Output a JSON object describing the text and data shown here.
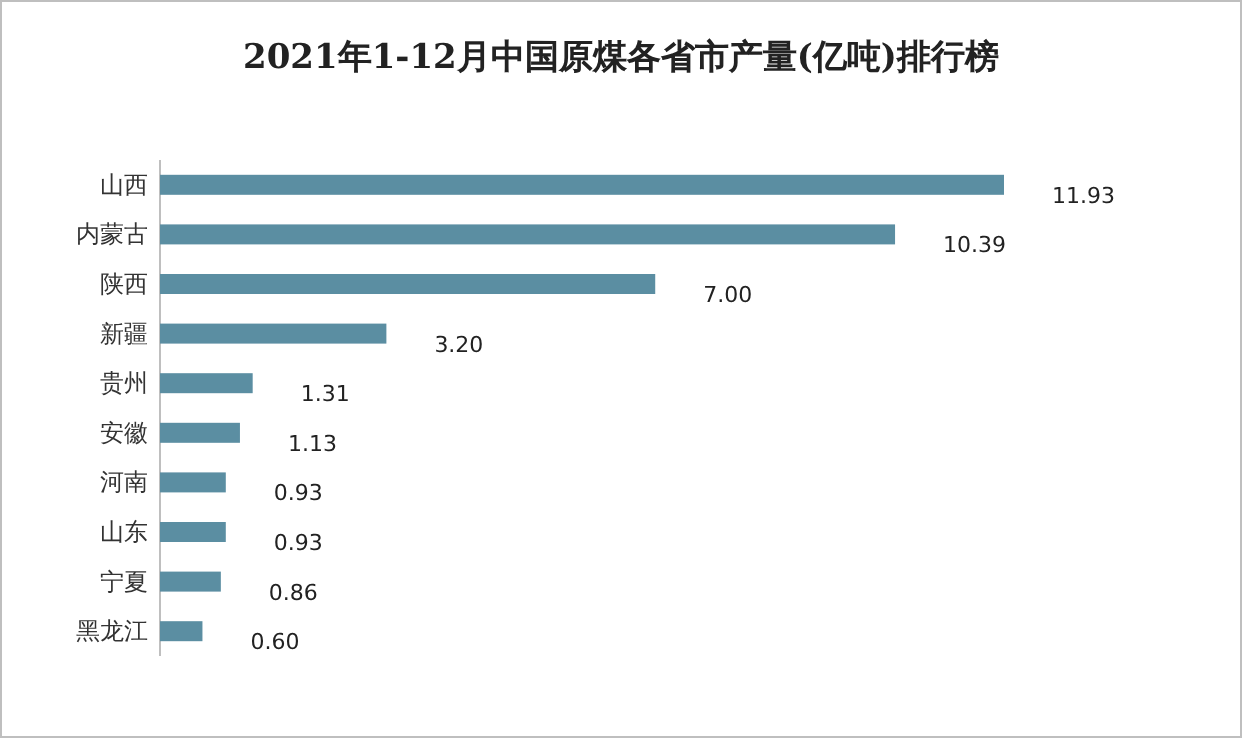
{
  "chart_data": {
    "type": "bar",
    "orientation": "horizontal",
    "title": "2021年1-12月中国原煤各省市产量(亿吨)排行榜",
    "categories": [
      "山西",
      "内蒙古",
      "陕西",
      "新疆",
      "贵州",
      "安徽",
      "河南",
      "山东",
      "宁夏",
      "黑龙江"
    ],
    "values": [
      11.93,
      10.39,
      7.0,
      3.2,
      1.31,
      1.13,
      0.93,
      0.93,
      0.86,
      0.6
    ],
    "value_labels": [
      "11.93",
      "10.39",
      "7.00",
      "3.20",
      "1.31",
      "1.13",
      "0.93",
      "0.93",
      "0.86",
      "0.60"
    ],
    "color": "#5b8ea2",
    "data_labels": true
  }
}
